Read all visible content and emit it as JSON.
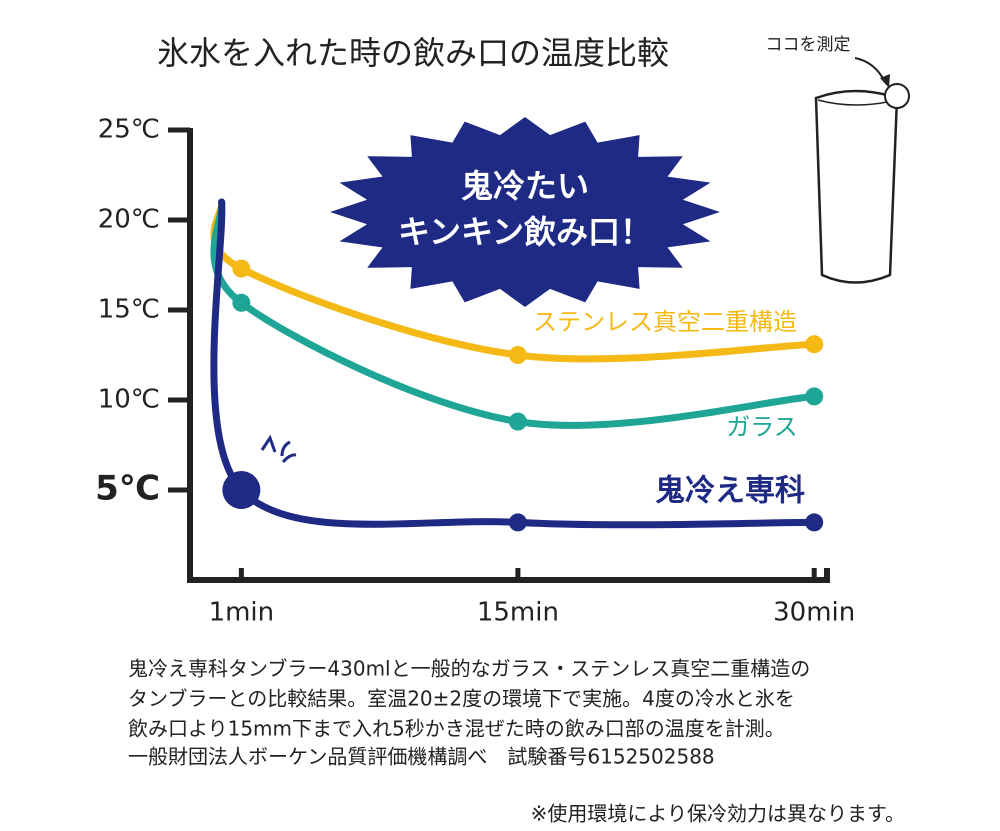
{
  "chart_data": {
    "type": "line",
    "title": "氷水を入れた時の飲み口の温度比較",
    "measure_note": "ココを測定",
    "burst_text": [
      "鬼冷たい",
      "キンキン飲み口！"
    ],
    "x": [
      0,
      1,
      15,
      30
    ],
    "xlim": [
      -1.6,
      30.8
    ],
    "xticks": [
      {
        "value": 1,
        "label": "1min"
      },
      {
        "value": 15,
        "label": "15min"
      },
      {
        "value": 30,
        "label": "30min"
      }
    ],
    "ylim": [
      0,
      25
    ],
    "yticks": [
      {
        "value": 5,
        "label": "5℃"
      },
      {
        "value": 10,
        "label": "10℃"
      },
      {
        "value": 15,
        "label": "15℃"
      },
      {
        "value": 20,
        "label": "20℃"
      },
      {
        "value": 25,
        "label": "25℃"
      }
    ],
    "series": [
      {
        "name": "ステンレス真空二重構造",
        "color": "#f5b915",
        "values": [
          21,
          17.3,
          12.5,
          13.1
        ]
      },
      {
        "name": "ガラス",
        "color": "#1fa595",
        "values": [
          21,
          15.4,
          8.8,
          10.2
        ]
      },
      {
        "name": "鬼冷え専科",
        "color": "#1f2a85",
        "values": [
          21,
          5,
          3.2,
          3.2
        ]
      }
    ],
    "notes": [
      "鬼冷え専科タンブラー430mlと一般的なガラス・ステンレス真空二重構造の",
      "タンブラーとの比較結果。室温20±2度の環境下で実施。4度の冷水と氷を",
      "飲み口より15mm下まで入れ5秒かき混ぜた時の飲み口部の温度を計測。",
      "一般財団法人ボーケン品質評価機構調べ　試験番号6152502588"
    ],
    "footnote": "※使用環境により保冷効力は異なります。"
  }
}
